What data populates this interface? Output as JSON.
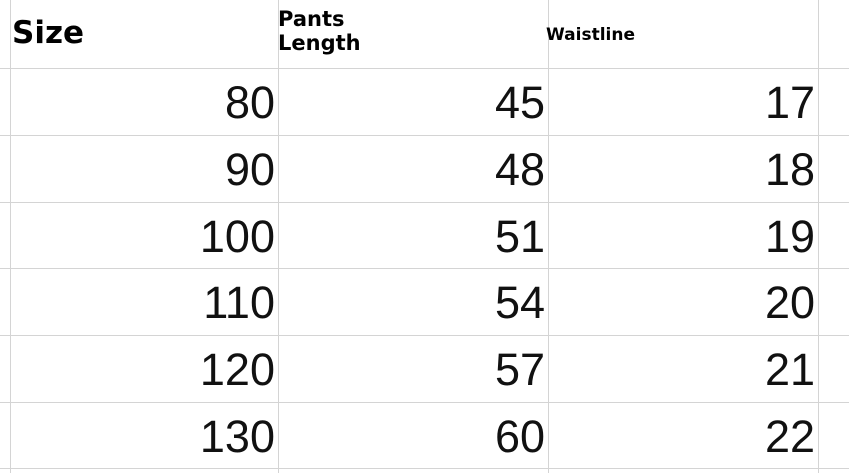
{
  "table": {
    "headers": [
      "Size",
      "Pants Length",
      "Waistline"
    ],
    "rows": [
      [
        80,
        45,
        17
      ],
      [
        90,
        48,
        18
      ],
      [
        100,
        51,
        19
      ],
      [
        110,
        54,
        20
      ],
      [
        120,
        57,
        21
      ],
      [
        130,
        60,
        22
      ]
    ]
  }
}
